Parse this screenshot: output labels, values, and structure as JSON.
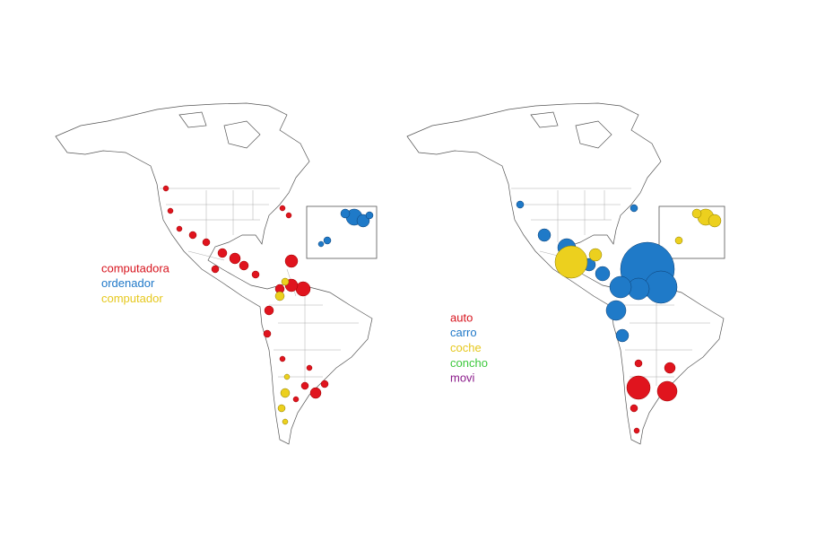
{
  "maps": [
    {
      "legend": [
        {
          "label": "computadora",
          "color": "#d7141e"
        },
        {
          "label": "ordenador",
          "color": "#1f78c8"
        },
        {
          "label": "computador",
          "color": "#e6c81e"
        }
      ]
    },
    {
      "legend": [
        {
          "label": "auto",
          "color": "#d7141e"
        },
        {
          "label": "carro",
          "color": "#1f78c8"
        },
        {
          "label": "coche",
          "color": "#e6c81e"
        },
        {
          "label": "concho",
          "color": "#3cc83c"
        },
        {
          "label": "movi",
          "color": "#8c1e8c"
        }
      ]
    }
  ]
}
